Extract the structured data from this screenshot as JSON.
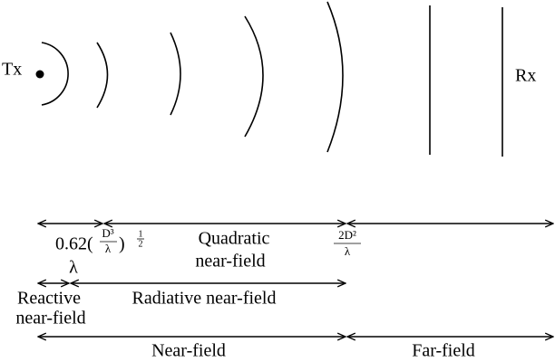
{
  "transmitter": "Tx",
  "receiver": "Rx",
  "boundaries": {
    "first": {
      "coefficient": "0.62(",
      "numerator": "D³",
      "denominator": "λ",
      "close": ")",
      "exponent_numerator": "1",
      "exponent_denominator": "2",
      "extra": "λ"
    },
    "second": {
      "numerator": "2D²",
      "denominator": "λ"
    }
  },
  "regions": {
    "quadratic": [
      "Quadratic",
      "near-field"
    ],
    "reactive": [
      "Reactive",
      "near-field"
    ],
    "radiative": "Radiative near-field",
    "near_field": "Near-field",
    "far_field": "Far-field"
  }
}
